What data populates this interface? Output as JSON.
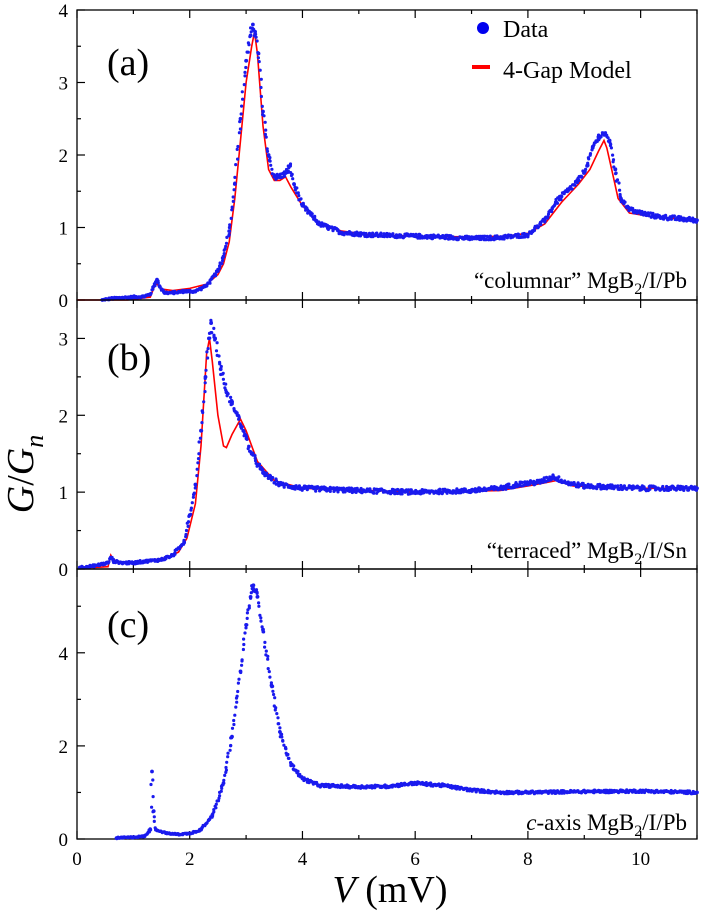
{
  "chart_data": {
    "type": "scatter",
    "figure": {
      "xlabel_var": "V",
      "xlabel_unit": " (mV)",
      "ylabel_num": "G",
      "ylabel_slash": "/",
      "ylabel_den": "G",
      "ylabel_sub": "n",
      "xlim": [
        0,
        11
      ],
      "xticks": [
        0,
        2,
        4,
        6,
        8,
        10
      ],
      "xtick_labels": [
        "0",
        "2",
        "4",
        "6",
        "8",
        "10"
      ],
      "legend": [
        {
          "label": "Data",
          "color": "#0000ee",
          "marker": "dot"
        },
        {
          "label": "4-Gap Model",
          "color": "#ff0000",
          "marker": "line"
        }
      ],
      "data_color": "#1a1aee",
      "model_color": "#ff0000"
    },
    "panels": [
      {
        "id": "a",
        "panel_label": "(a)",
        "sample_label": "“columnar” MgB",
        "sample_sub": "2",
        "sample_suffix": "/I/Pb",
        "ylim": [
          0,
          4
        ],
        "yticks": [
          0,
          1,
          2,
          3,
          4
        ],
        "ytick_labels": [
          "0",
          "1",
          "2",
          "3",
          "4"
        ],
        "has_model": true,
        "data": [
          [
            0.45,
            0
          ],
          [
            0.6,
            0.02
          ],
          [
            0.8,
            0.03
          ],
          [
            1.0,
            0.04
          ],
          [
            1.2,
            0.05
          ],
          [
            1.3,
            0.08
          ],
          [
            1.38,
            0.22
          ],
          [
            1.42,
            0.28
          ],
          [
            1.47,
            0.18
          ],
          [
            1.55,
            0.1
          ],
          [
            1.7,
            0.1
          ],
          [
            1.9,
            0.12
          ],
          [
            2.1,
            0.12
          ],
          [
            2.3,
            0.2
          ],
          [
            2.5,
            0.4
          ],
          [
            2.6,
            0.6
          ],
          [
            2.7,
            0.95
          ],
          [
            2.8,
            1.6
          ],
          [
            2.9,
            2.5
          ],
          [
            3.0,
            3.3
          ],
          [
            3.08,
            3.65
          ],
          [
            3.12,
            3.8
          ],
          [
            3.16,
            3.7
          ],
          [
            3.22,
            3.4
          ],
          [
            3.3,
            2.6
          ],
          [
            3.4,
            2.0
          ],
          [
            3.5,
            1.7
          ],
          [
            3.6,
            1.7
          ],
          [
            3.7,
            1.75
          ],
          [
            3.78,
            1.85
          ],
          [
            3.85,
            1.6
          ],
          [
            4.0,
            1.3
          ],
          [
            4.3,
            1.05
          ],
          [
            4.7,
            0.93
          ],
          [
            5.2,
            0.9
          ],
          [
            6.0,
            0.88
          ],
          [
            6.5,
            0.87
          ],
          [
            7.0,
            0.85
          ],
          [
            7.5,
            0.86
          ],
          [
            8.0,
            0.9
          ],
          [
            8.3,
            1.1
          ],
          [
            8.5,
            1.35
          ],
          [
            8.7,
            1.5
          ],
          [
            8.9,
            1.65
          ],
          [
            9.05,
            1.85
          ],
          [
            9.15,
            2.1
          ],
          [
            9.25,
            2.25
          ],
          [
            9.35,
            2.3
          ],
          [
            9.45,
            2.2
          ],
          [
            9.55,
            1.8
          ],
          [
            9.65,
            1.4
          ],
          [
            9.8,
            1.25
          ],
          [
            10.0,
            1.2
          ],
          [
            10.3,
            1.15
          ],
          [
            10.7,
            1.12
          ],
          [
            11.0,
            1.1
          ]
        ],
        "model": [
          [
            0,
            0
          ],
          [
            0.9,
            0
          ],
          [
            1.3,
            0.04
          ],
          [
            1.38,
            0.2
          ],
          [
            1.42,
            0.22
          ],
          [
            1.5,
            0.15
          ],
          [
            1.7,
            0.13
          ],
          [
            2.0,
            0.16
          ],
          [
            2.3,
            0.22
          ],
          [
            2.5,
            0.35
          ],
          [
            2.6,
            0.5
          ],
          [
            2.7,
            0.8
          ],
          [
            2.8,
            1.4
          ],
          [
            2.9,
            2.2
          ],
          [
            3.0,
            3.0
          ],
          [
            3.1,
            3.5
          ],
          [
            3.15,
            3.7
          ],
          [
            3.2,
            3.4
          ],
          [
            3.3,
            2.4
          ],
          [
            3.4,
            1.8
          ],
          [
            3.5,
            1.65
          ],
          [
            3.6,
            1.65
          ],
          [
            3.7,
            1.7
          ],
          [
            3.8,
            1.55
          ],
          [
            4.0,
            1.3
          ],
          [
            4.3,
            1.05
          ],
          [
            4.7,
            0.95
          ],
          [
            5.2,
            0.9
          ],
          [
            6.0,
            0.88
          ],
          [
            7.0,
            0.87
          ],
          [
            7.6,
            0.88
          ],
          [
            8.0,
            0.92
          ],
          [
            8.3,
            1.05
          ],
          [
            8.6,
            1.35
          ],
          [
            8.9,
            1.6
          ],
          [
            9.1,
            1.8
          ],
          [
            9.25,
            2.05
          ],
          [
            9.35,
            2.2
          ],
          [
            9.4,
            2.1
          ],
          [
            9.5,
            1.75
          ],
          [
            9.6,
            1.4
          ],
          [
            9.8,
            1.2
          ],
          [
            10.2,
            1.15
          ],
          [
            11.0,
            1.1
          ]
        ]
      },
      {
        "id": "b",
        "panel_label": "(b)",
        "sample_label": "“terraced” MgB",
        "sample_sub": "2",
        "sample_suffix": "/I/Sn",
        "ylim": [
          0,
          3.5
        ],
        "yticks": [
          0,
          1,
          2,
          3
        ],
        "ytick_labels": [
          "0",
          "1",
          "2",
          "3"
        ],
        "has_model": true,
        "data": [
          [
            0.05,
            0.02
          ],
          [
            0.3,
            0.04
          ],
          [
            0.55,
            0.08
          ],
          [
            0.6,
            0.15
          ],
          [
            0.65,
            0.1
          ],
          [
            0.8,
            0.08
          ],
          [
            1.0,
            0.08
          ],
          [
            1.2,
            0.1
          ],
          [
            1.5,
            0.12
          ],
          [
            1.7,
            0.18
          ],
          [
            1.9,
            0.35
          ],
          [
            2.0,
            0.7
          ],
          [
            2.1,
            1.1
          ],
          [
            2.2,
            1.8
          ],
          [
            2.28,
            2.5
          ],
          [
            2.34,
            3.0
          ],
          [
            2.38,
            3.2
          ],
          [
            2.45,
            3.0
          ],
          [
            2.55,
            2.6
          ],
          [
            2.65,
            2.3
          ],
          [
            2.75,
            2.15
          ],
          [
            2.85,
            2.0
          ],
          [
            2.95,
            1.8
          ],
          [
            3.1,
            1.5
          ],
          [
            3.3,
            1.25
          ],
          [
            3.6,
            1.1
          ],
          [
            4.0,
            1.05
          ],
          [
            5.0,
            1.02
          ],
          [
            6.0,
            1.0
          ],
          [
            7.0,
            1.02
          ],
          [
            7.5,
            1.05
          ],
          [
            7.8,
            1.1
          ],
          [
            8.2,
            1.13
          ],
          [
            8.45,
            1.2
          ],
          [
            8.7,
            1.12
          ],
          [
            9.0,
            1.08
          ],
          [
            10.0,
            1.05
          ],
          [
            11.0,
            1.05
          ]
        ],
        "model": [
          [
            0.05,
            0.02
          ],
          [
            0.3,
            0.02
          ],
          [
            0.55,
            0.03
          ],
          [
            0.6,
            0.18
          ],
          [
            0.65,
            0.12
          ],
          [
            0.8,
            0.08
          ],
          [
            1.2,
            0.1
          ],
          [
            1.6,
            0.15
          ],
          [
            1.8,
            0.22
          ],
          [
            1.95,
            0.4
          ],
          [
            2.1,
            0.85
          ],
          [
            2.2,
            1.6
          ],
          [
            2.3,
            2.8
          ],
          [
            2.35,
            3.0
          ],
          [
            2.4,
            2.7
          ],
          [
            2.5,
            2.0
          ],
          [
            2.6,
            1.6
          ],
          [
            2.65,
            1.58
          ],
          [
            2.75,
            1.75
          ],
          [
            2.9,
            1.95
          ],
          [
            3.0,
            1.8
          ],
          [
            3.2,
            1.4
          ],
          [
            3.5,
            1.15
          ],
          [
            4.0,
            1.05
          ],
          [
            6.0,
            1.0
          ],
          [
            7.5,
            1.02
          ],
          [
            8.0,
            1.08
          ],
          [
            8.3,
            1.12
          ],
          [
            8.5,
            1.15
          ],
          [
            8.8,
            1.08
          ],
          [
            10.0,
            1.05
          ],
          [
            11.0,
            1.05
          ]
        ]
      },
      {
        "id": "c",
        "panel_label": "(c)",
        "sample_label": "c",
        "sample_italic_suffix": "-axis MgB",
        "sample_sub": "2",
        "sample_suffix": "/I/Pb",
        "ylim": [
          0,
          5.8
        ],
        "yticks": [
          0,
          2,
          4
        ],
        "ytick_labels": [
          "0",
          "2",
          "4"
        ],
        "has_model": false,
        "data": [
          [
            0.7,
            0.02
          ],
          [
            1.0,
            0.04
          ],
          [
            1.2,
            0.06
          ],
          [
            1.3,
            0.2
          ],
          [
            1.33,
            1.45
          ],
          [
            1.36,
            0.6
          ],
          [
            1.4,
            0.2
          ],
          [
            1.6,
            0.12
          ],
          [
            1.8,
            0.1
          ],
          [
            2.0,
            0.12
          ],
          [
            2.2,
            0.2
          ],
          [
            2.4,
            0.5
          ],
          [
            2.6,
            1.2
          ],
          [
            2.75,
            2.2
          ],
          [
            2.9,
            3.6
          ],
          [
            3.0,
            4.6
          ],
          [
            3.08,
            5.2
          ],
          [
            3.13,
            5.45
          ],
          [
            3.2,
            5.2
          ],
          [
            3.3,
            4.5
          ],
          [
            3.45,
            3.3
          ],
          [
            3.6,
            2.3
          ],
          [
            3.8,
            1.6
          ],
          [
            4.0,
            1.3
          ],
          [
            4.3,
            1.15
          ],
          [
            5.0,
            1.12
          ],
          [
            5.5,
            1.13
          ],
          [
            6.0,
            1.2
          ],
          [
            6.5,
            1.15
          ],
          [
            7.0,
            1.05
          ],
          [
            7.5,
            1.0
          ],
          [
            8.0,
            1.0
          ],
          [
            9.0,
            1.02
          ],
          [
            10.0,
            1.03
          ],
          [
            11.0,
            1.0
          ]
        ]
      }
    ]
  }
}
